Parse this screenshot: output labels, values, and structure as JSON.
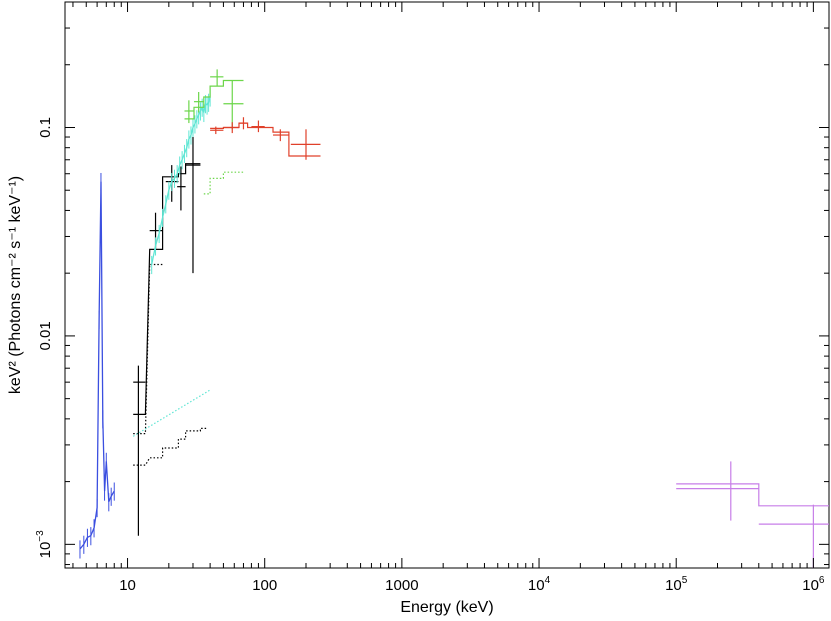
{
  "chart_data": {
    "type": "scatter",
    "title": "",
    "xlabel": "Energy (keV)",
    "ylabel": "keV² (Photons cm⁻² s⁻¹ keV⁻¹)",
    "x_scale": "log",
    "y_scale": "log",
    "xlim": [
      3.5,
      1300000
    ],
    "ylim": [
      0.00077,
      0.4
    ],
    "x_ticks": [
      {
        "value": 10,
        "label": "10"
      },
      {
        "value": 100,
        "label": "100"
      },
      {
        "value": 1000,
        "label": "1000"
      },
      {
        "value": 10000,
        "label": "10",
        "exp": "4"
      },
      {
        "value": 100000,
        "label": "10",
        "exp": "5"
      },
      {
        "value": 1000000,
        "label": "10",
        "exp": "6"
      }
    ],
    "y_ticks": [
      {
        "value": 0.001,
        "label": "10",
        "exp": "−3"
      },
      {
        "value": 0.01,
        "label": "0.01"
      },
      {
        "value": 0.1,
        "label": "0.1"
      }
    ],
    "grid": false,
    "legend": "none",
    "series": [
      {
        "color": "#3b4fe0",
        "style": "spectrum-noisy",
        "x": [
          4.5,
          4.8,
          5.1,
          5.4,
          5.7,
          6.0,
          6.2,
          6.4,
          6.6,
          6.8,
          7.0,
          7.3,
          7.6,
          8.0
        ],
        "y": [
          0.00095,
          0.001,
          0.00108,
          0.0011,
          0.0012,
          0.0015,
          0.012,
          0.055,
          0.004,
          0.0018,
          0.0025,
          0.0016,
          0.0017,
          0.0018
        ]
      },
      {
        "color": "#000000",
        "style": "crosses",
        "points": [
          {
            "x": 12,
            "y": 0.006,
            "xlo": 11,
            "xhi": 13.5,
            "ylo": 0.0011,
            "yhi": 0.0072
          },
          {
            "x": 16,
            "y": 0.032,
            "xlo": 14.5,
            "xhi": 18,
            "ylo": 0.026,
            "yhi": 0.039
          },
          {
            "x": 21,
            "y": 0.055,
            "xlo": 19,
            "xhi": 23.5,
            "ylo": 0.044,
            "yhi": 0.066
          },
          {
            "x": 24.5,
            "y": 0.052,
            "xlo": 23,
            "xhi": 26.5,
            "ylo": 0.04,
            "yhi": 0.065
          },
          {
            "x": 30,
            "y": 0.066,
            "xlo": 26.5,
            "xhi": 34,
            "ylo": 0.02,
            "yhi": 0.09
          }
        ]
      },
      {
        "color": "#000000",
        "style": "model-step",
        "x": [
          11,
          13.5,
          14.5,
          18,
          18,
          23.5,
          23.5,
          26.5,
          26.5,
          34
        ],
        "y": [
          0.0042,
          0.0042,
          0.026,
          0.026,
          0.058,
          0.058,
          0.06,
          0.06,
          0.067,
          0.067
        ]
      },
      {
        "color": "#000000",
        "style": "model-dotted",
        "x": [
          11,
          13.5,
          14.5,
          18,
          18,
          23.5,
          23.5,
          26.5,
          26.5,
          34,
          34,
          38
        ],
        "y": [
          0.0024,
          0.0024,
          0.0026,
          0.0026,
          0.0029,
          0.0029,
          0.0032,
          0.0032,
          0.0035,
          0.0035,
          0.0036,
          0.0036
        ]
      },
      {
        "color": "#000000",
        "style": "model-dotted-2",
        "x": [
          11,
          13.5,
          14.5,
          18
        ],
        "y": [
          0.0034,
          0.0034,
          0.022,
          0.022
        ]
      },
      {
        "color": "#5fe6d4",
        "style": "spectrum-noisy",
        "x": [
          15,
          16,
          17,
          18,
          19,
          20,
          21,
          22,
          23,
          24,
          25,
          26,
          27,
          28,
          29,
          30,
          31,
          32,
          33,
          34,
          35,
          36,
          37,
          38,
          39,
          40
        ],
        "y": [
          0.022,
          0.027,
          0.031,
          0.037,
          0.043,
          0.05,
          0.055,
          0.057,
          0.06,
          0.066,
          0.07,
          0.075,
          0.08,
          0.088,
          0.092,
          0.1,
          0.104,
          0.11,
          0.115,
          0.12,
          0.125,
          0.118,
          0.13,
          0.128,
          0.132,
          0.14
        ]
      },
      {
        "color": "#5fe6d4",
        "style": "model-dotted",
        "x": [
          11,
          40
        ],
        "y": [
          0.0033,
          0.0055
        ]
      },
      {
        "color": "#6cd64a",
        "style": "crosses",
        "points": [
          {
            "x": 28,
            "y": 0.12,
            "xlo": 26,
            "xhi": 30.5,
            "ylo": 0.105,
            "yhi": 0.135
          },
          {
            "x": 33,
            "y": 0.133,
            "xlo": 30.5,
            "xhi": 36,
            "ylo": 0.118,
            "yhi": 0.148
          },
          {
            "x": 45,
            "y": 0.175,
            "xlo": 40,
            "xhi": 50,
            "ylo": 0.158,
            "yhi": 0.19
          },
          {
            "x": 58,
            "y": 0.13,
            "xlo": 50,
            "xhi": 70,
            "ylo": 0.098,
            "yhi": 0.168
          }
        ]
      },
      {
        "color": "#6cd64a",
        "style": "model-step",
        "x": [
          26,
          30.5,
          30.5,
          36,
          36,
          40,
          40,
          50,
          50,
          70
        ],
        "y": [
          0.11,
          0.11,
          0.125,
          0.125,
          0.14,
          0.14,
          0.158,
          0.158,
          0.168,
          0.168
        ]
      },
      {
        "color": "#6cd64a",
        "style": "model-dotted",
        "x": [
          36,
          40,
          40,
          50,
          50,
          70
        ],
        "y": [
          0.048,
          0.048,
          0.057,
          0.057,
          0.061,
          0.061
        ]
      },
      {
        "color": "#e0402a",
        "style": "crosses",
        "points": [
          {
            "x": 44,
            "y": 0.097,
            "xlo": 40,
            "xhi": 50,
            "ylo": 0.093,
            "yhi": 0.101
          },
          {
            "x": 58,
            "y": 0.1,
            "xlo": 50,
            "xhi": 65,
            "ylo": 0.094,
            "yhi": 0.106
          },
          {
            "x": 70,
            "y": 0.105,
            "xlo": 65,
            "xhi": 75,
            "ylo": 0.098,
            "yhi": 0.112
          },
          {
            "x": 90,
            "y": 0.101,
            "xlo": 80,
            "xhi": 100,
            "ylo": 0.095,
            "yhi": 0.108
          },
          {
            "x": 130,
            "y": 0.092,
            "xlo": 115,
            "xhi": 150,
            "ylo": 0.086,
            "yhi": 0.098
          },
          {
            "x": 200,
            "y": 0.083,
            "xlo": 155,
            "xhi": 255,
            "ylo": 0.07,
            "yhi": 0.098
          }
        ]
      },
      {
        "color": "#e0402a",
        "style": "model-step",
        "x": [
          40,
          50,
          50,
          65,
          65,
          75,
          75,
          115,
          115,
          150,
          150,
          255
        ],
        "y": [
          0.099,
          0.099,
          0.1,
          0.1,
          0.105,
          0.105,
          0.1,
          0.1,
          0.095,
          0.095,
          0.073,
          0.073
        ]
      },
      {
        "color": "#c77ee8",
        "style": "crosses",
        "points": [
          {
            "x": 250000,
            "y": 0.00185,
            "xlo": 100000,
            "xhi": 400000,
            "ylo": 0.0013,
            "yhi": 0.0025
          },
          {
            "x": 1000000,
            "y": 0.00125,
            "xlo": 400000,
            "xhi": 1300000,
            "ylo": 0.00077,
            "yhi": 0.00155
          }
        ]
      },
      {
        "color": "#c77ee8",
        "style": "model-step",
        "x": [
          100000,
          400000,
          400000,
          1300000
        ],
        "y": [
          0.00195,
          0.00195,
          0.00153,
          0.00153
        ]
      }
    ]
  }
}
